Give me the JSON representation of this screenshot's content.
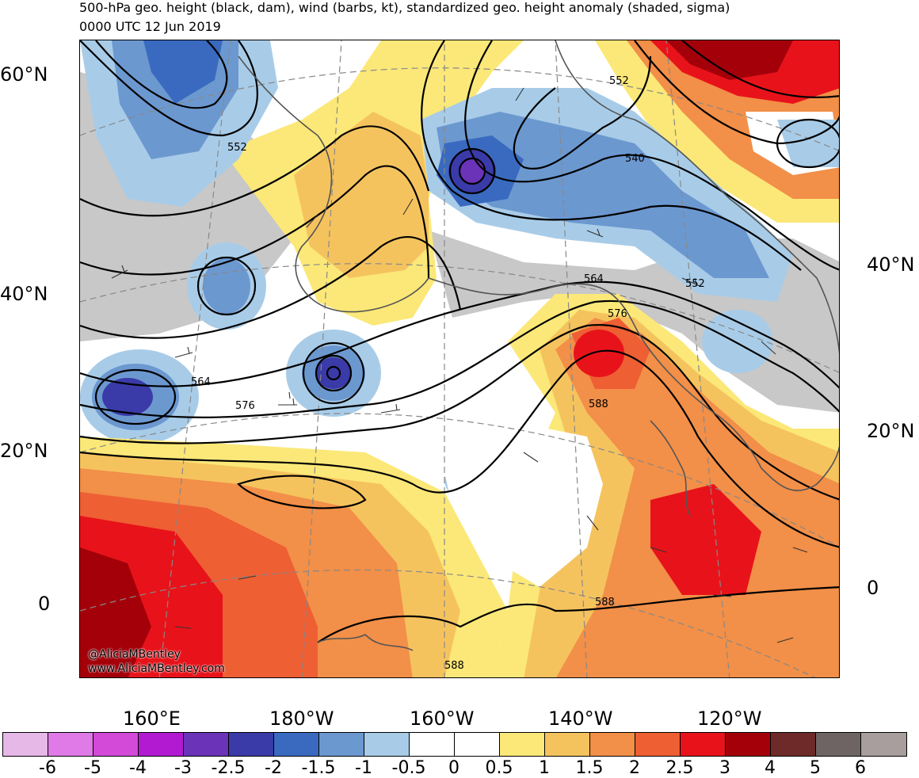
{
  "header": {
    "title": "500-hPa geo. height (black, dam), wind (barbs, kt), standardized geo. height anomaly (shaded, sigma)",
    "subtitle": "0000 UTC 12 Jun 2019"
  },
  "map": {
    "lat_labels_left": [
      "60°N",
      "40°N",
      "20°N",
      "0"
    ],
    "lat_labels_right": [
      "40°N",
      "20°N",
      "0"
    ],
    "lon_labels": [
      "160°E",
      "180°W",
      "160°W",
      "140°W",
      "120°W"
    ],
    "contour_labels": [
      "552",
      "552",
      "540",
      "552",
      "564",
      "576",
      "564",
      "576",
      "588",
      "588",
      "588"
    ],
    "credits": [
      "@AliciaMBentley",
      "www.AliciaMBentley.com"
    ]
  },
  "colorbar": {
    "colors": [
      "#e6b8e8",
      "#e07ae6",
      "#d34ad8",
      "#b21ad2",
      "#6a33b8",
      "#3a3aa8",
      "#3a6ac0",
      "#6c98d0",
      "#a8cce8",
      "#ffffff",
      "#ffffff",
      "#fbe878",
      "#f5c35e",
      "#f28f48",
      "#ee5f34",
      "#e8131a",
      "#a4000a",
      "#6e2a28",
      "#6f6464",
      "#a89e9e"
    ],
    "labels": [
      "-6",
      "-5",
      "-4",
      "-3",
      "-2.5",
      "-2",
      "-1.5",
      "-1",
      "-0.5",
      "0",
      "0.5",
      "1",
      "1.5",
      "2",
      "2.5",
      "3",
      "4",
      "5",
      "6"
    ]
  }
}
